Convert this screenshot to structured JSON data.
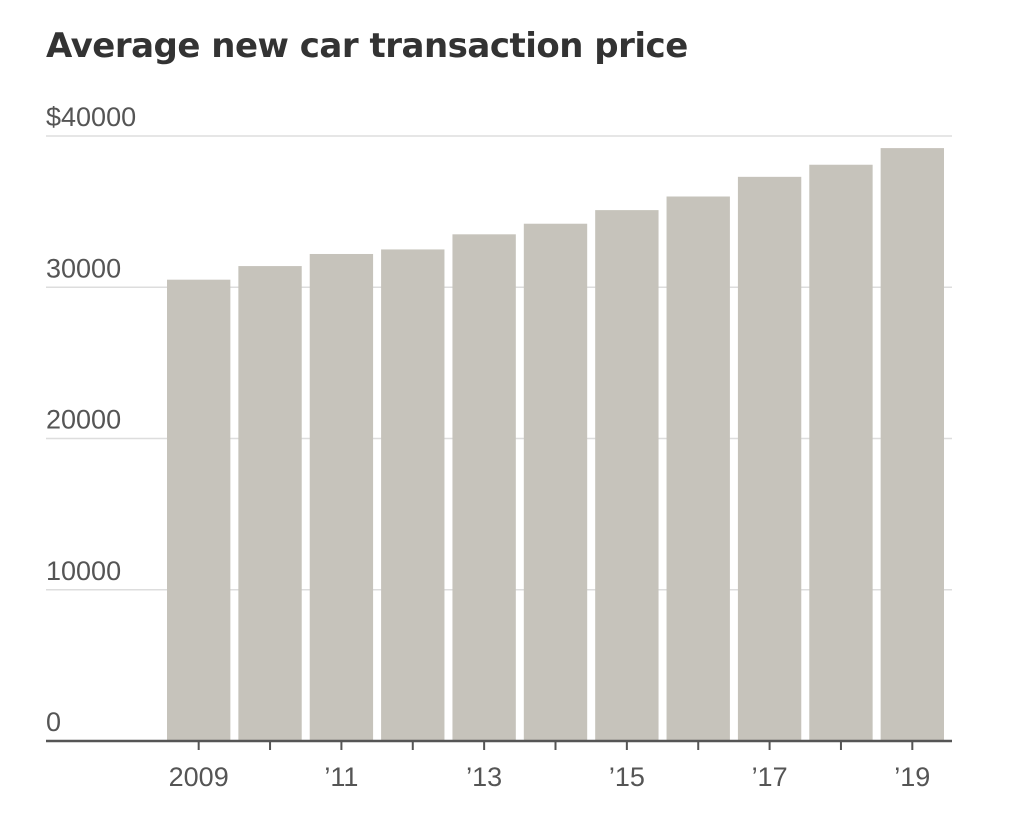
{
  "chart_data": {
    "type": "bar",
    "title": "Average new car transaction price",
    "xlabel": "",
    "ylabel": "",
    "categories": [
      "2009",
      "2010",
      "2011",
      "2012",
      "2013",
      "2014",
      "2015",
      "2016",
      "2017",
      "2018",
      "2019"
    ],
    "x_tick_labels": [
      "2009",
      "",
      "’11",
      "",
      "’13",
      "",
      "’15",
      "",
      "’17",
      "",
      "’19"
    ],
    "values": [
      30500,
      31400,
      32200,
      32500,
      33500,
      34200,
      35100,
      36000,
      37300,
      38100,
      39200
    ],
    "y_ticks": [
      0,
      10000,
      20000,
      30000,
      40000
    ],
    "y_tick_labels": [
      "0",
      "10000",
      "20000",
      "30000",
      "$40000"
    ],
    "ylim": [
      0,
      40000
    ],
    "grid": true,
    "legend": "none",
    "colors": {
      "bar": "#c6c3bb",
      "gridline": "#dddddd",
      "axis": "#555555",
      "title": "#333333",
      "text": "#555555"
    }
  }
}
